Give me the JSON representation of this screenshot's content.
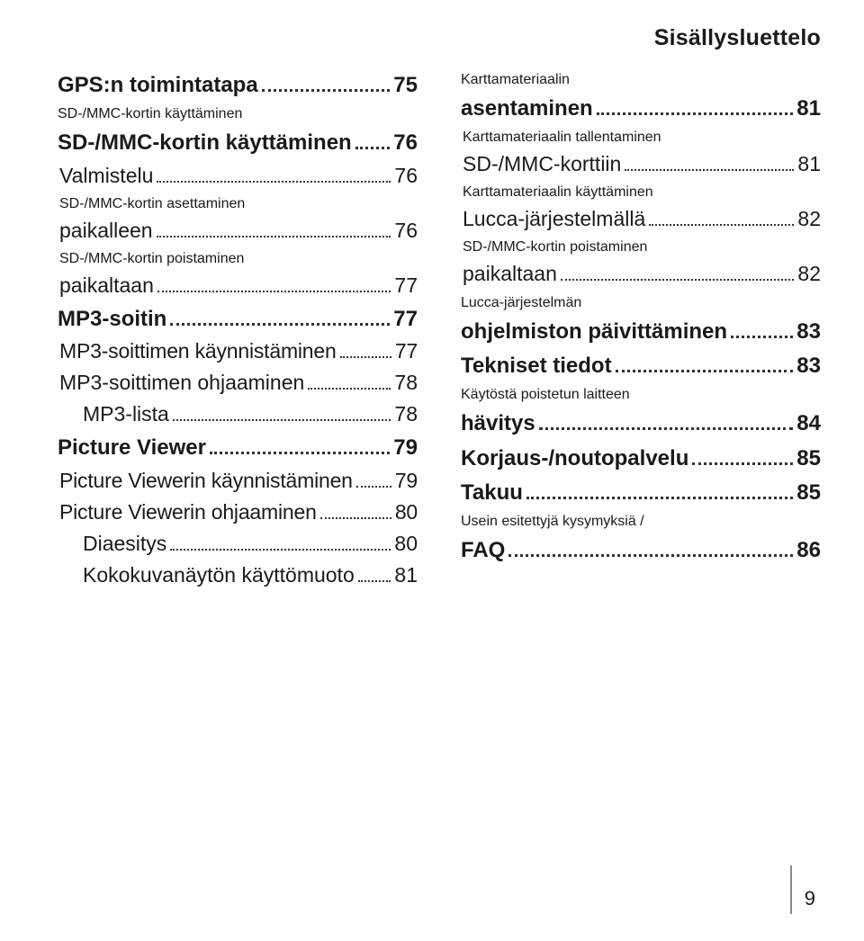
{
  "header": "Sisällysluettelo",
  "page_number": "9",
  "colors": {
    "text": "#1a1a1a",
    "background": "#ffffff",
    "divider": "#888888"
  },
  "typography": {
    "base_font": "Arial",
    "lvl1_size": 24,
    "lvl2_size": 23,
    "lvl1_weight": "700",
    "lvl2_weight": "400"
  },
  "left": [
    {
      "level": 1,
      "label": "GPS:n toimintatapa",
      "page": "75"
    },
    {
      "level": 1,
      "label": "SD-/MMC-kortin käyttäminen",
      "page": "76",
      "prefix": "SD-/MMC-kortin käyttäminen"
    },
    {
      "level": 2,
      "label": "Valmistelu",
      "page": "76"
    },
    {
      "level": 2,
      "label": "paikalleen",
      "page": "76",
      "prefix": "SD-/MMC-kortin asettaminen"
    },
    {
      "level": 2,
      "label": "paikaltaan",
      "page": "77",
      "prefix": "SD-/MMC-kortin poistaminen"
    },
    {
      "level": 1,
      "label": "MP3-soitin",
      "page": "77"
    },
    {
      "level": 2,
      "label": "MP3-soittimen käynnistäminen",
      "page": "77"
    },
    {
      "level": 2,
      "label": "MP3-soittimen ohjaaminen",
      "page": "78"
    },
    {
      "level": 3,
      "label": "MP3-lista",
      "page": "78"
    },
    {
      "level": 1,
      "label": "Picture Viewer",
      "page": "79"
    },
    {
      "level": 2,
      "label": "Picture Viewerin käynnistäminen",
      "page": "79"
    },
    {
      "level": 2,
      "label": "Picture Viewerin ohjaaminen",
      "page": "80"
    },
    {
      "level": 3,
      "label": "Diaesitys",
      "page": "80"
    },
    {
      "level": 3,
      "label": "Kokokuvanäytön käyttömuoto",
      "page": "81"
    }
  ],
  "right": [
    {
      "level": 1,
      "label": "asentaminen",
      "page": "81",
      "prefix": "Karttamateriaalin"
    },
    {
      "level": 2,
      "label": "SD-/MMC-korttiin",
      "page": "81",
      "prefix": "Karttamateriaalin tallentaminen"
    },
    {
      "level": 2,
      "label": "Lucca-järjestelmällä",
      "page": "82",
      "prefix": "Karttamateriaalin käyttäminen"
    },
    {
      "level": 2,
      "label": "paikaltaan",
      "page": "82",
      "prefix": "SD-/MMC-kortin poistaminen"
    },
    {
      "level": 1,
      "label": "ohjelmiston päivittäminen",
      "page": "83",
      "prefix": "Lucca-järjestelmän"
    },
    {
      "level": 1,
      "label": "Tekniset tiedot",
      "page": "83"
    },
    {
      "level": 1,
      "label": "hävitys",
      "page": "84",
      "prefix": "Käytöstä poistetun laitteen"
    },
    {
      "level": 1,
      "label": "Korjaus-/noutopalvelu",
      "page": "85"
    },
    {
      "level": 1,
      "label": "Takuu",
      "page": "85"
    },
    {
      "level": 1,
      "label": "FAQ",
      "page": "86",
      "prefix": "Usein esitettyjä kysymyksiä /"
    }
  ]
}
